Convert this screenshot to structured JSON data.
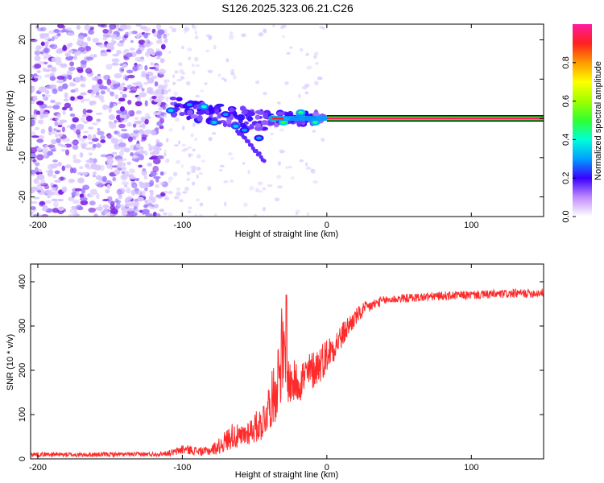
{
  "title": "S126.2025.323.06.21.C26",
  "colors": {
    "snr_line": "#ff2a2a",
    "spectral_band": "#0a0a0a",
    "spectral_band_core": "#ff2a2a",
    "scatter_light": "#d9c7ff",
    "scatter_mid": "#a07bff",
    "scatter_dark": "#7a1fe0"
  },
  "chart_data": [
    {
      "type": "heatmap",
      "name": "spectrogram",
      "title": "",
      "xlabel": "Height of straight line (km)",
      "ylabel": "Frequency (Hz)",
      "xlim": [
        -205,
        150
      ],
      "ylim": [
        -25,
        24
      ],
      "xticks": [
        -200,
        -100,
        0,
        100
      ],
      "xtick_labels": [
        "-200",
        "-100",
        "0",
        "100"
      ],
      "yticks": [
        -20,
        -10,
        0,
        10,
        20
      ],
      "ytick_labels": [
        "-20",
        "-10",
        "0",
        "10",
        "20"
      ],
      "noise_region_x": [
        -205,
        -112
      ],
      "transition_region_x": [
        -112,
        -2
      ],
      "stable_band": {
        "x_start": 0,
        "x_end": 150,
        "frequency": 0,
        "normalized_amplitude": 0.95
      },
      "features": [
        {
          "x": -108,
          "frequency": 2,
          "amplitude": 0.35
        },
        {
          "x": -95,
          "frequency": 3.5,
          "amplitude": 0.3
        },
        {
          "x": -85,
          "frequency": 3,
          "amplitude": 0.4
        },
        {
          "x": -78,
          "frequency": -1,
          "amplitude": 0.35
        },
        {
          "x": -70,
          "frequency": 1,
          "amplitude": 0.3
        },
        {
          "x": -63,
          "frequency": -2,
          "amplitude": 0.35
        },
        {
          "x": -57,
          "frequency": -3,
          "amplitude": 0.3
        },
        {
          "x": -47,
          "frequency": -5,
          "amplitude": 0.3
        },
        {
          "x": -37,
          "frequency": 0,
          "amplitude": 0.8
        },
        {
          "x": -30,
          "frequency": -1,
          "amplitude": 0.5
        },
        {
          "x": -18,
          "frequency": 1.5,
          "amplitude": 0.45
        },
        {
          "x": -8,
          "frequency": -1,
          "amplitude": 0.45
        },
        {
          "x": 87,
          "frequency": 0,
          "amplitude": 0.55
        }
      ]
    },
    {
      "type": "colorbar",
      "name": "colorbar",
      "label": "Normalized spectral amplitude",
      "ylim": [
        0,
        1
      ],
      "ticks": [
        0.0,
        0.2,
        0.4,
        0.6,
        0.8
      ],
      "tick_labels": [
        "0.0",
        "0.2",
        "0.4",
        "0.6",
        "0.8"
      ],
      "colormap_stops": [
        {
          "value": 0.0,
          "color": "#ffffff"
        },
        {
          "value": 0.1,
          "color": "#c08cff"
        },
        {
          "value": 0.2,
          "color": "#3a00ff"
        },
        {
          "value": 0.3,
          "color": "#00a0ff"
        },
        {
          "value": 0.4,
          "color": "#00ffd8"
        },
        {
          "value": 0.5,
          "color": "#30ff30"
        },
        {
          "value": 0.6,
          "color": "#a0ff00"
        },
        {
          "value": 0.7,
          "color": "#ffff00"
        },
        {
          "value": 0.8,
          "color": "#ff9a00"
        },
        {
          "value": 0.9,
          "color": "#ff2020"
        },
        {
          "value": 1.0,
          "color": "#ff1aa0"
        }
      ]
    },
    {
      "type": "line",
      "name": "snr",
      "title": "",
      "xlabel": "Height of straight line (km)",
      "ylabel": "SNR (10 * v/v)",
      "xlim": [
        -205,
        150
      ],
      "ylim": [
        0,
        440
      ],
      "xticks": [
        -200,
        -100,
        0,
        100
      ],
      "xtick_labels": [
        "-200",
        "-100",
        "0",
        "100"
      ],
      "yticks": [
        0,
        100,
        200,
        300,
        400
      ],
      "ytick_labels": [
        "0",
        "100",
        "200",
        "300",
        "400"
      ],
      "series": [
        {
          "name": "SNR",
          "x": [
            -205,
            -190,
            -170,
            -150,
            -130,
            -115,
            -105,
            -100,
            -95,
            -90,
            -85,
            -80,
            -75,
            -70,
            -65,
            -60,
            -55,
            -50,
            -45,
            -40,
            -36,
            -33,
            -31,
            -30,
            -28,
            -25,
            -20,
            -15,
            -10,
            -5,
            0,
            5,
            10,
            15,
            20,
            25,
            30,
            35,
            40,
            50,
            60,
            70,
            80,
            90,
            100,
            110,
            120,
            130,
            140,
            150
          ],
          "y": [
            10,
            10,
            9,
            10,
            10,
            11,
            15,
            22,
            20,
            18,
            16,
            20,
            28,
            40,
            55,
            45,
            60,
            70,
            80,
            120,
            150,
            200,
            250,
            230,
            190,
            170,
            175,
            185,
            200,
            215,
            235,
            255,
            275,
            300,
            320,
            335,
            345,
            352,
            358,
            362,
            364,
            366,
            368,
            369,
            370,
            371,
            372,
            373,
            374,
            375
          ],
          "noise_amplitude": [
            5,
            5,
            5,
            5,
            5,
            5,
            8,
            12,
            10,
            10,
            10,
            12,
            18,
            25,
            30,
            28,
            30,
            35,
            40,
            55,
            70,
            90,
            110,
            80,
            60,
            50,
            50,
            50,
            45,
            45,
            40,
            35,
            30,
            25,
            20,
            18,
            15,
            12,
            10,
            10,
            10,
            10,
            10,
            10,
            10,
            10,
            10,
            10,
            10,
            10
          ],
          "spike": {
            "x": -28,
            "y": 370
          }
        }
      ]
    }
  ]
}
